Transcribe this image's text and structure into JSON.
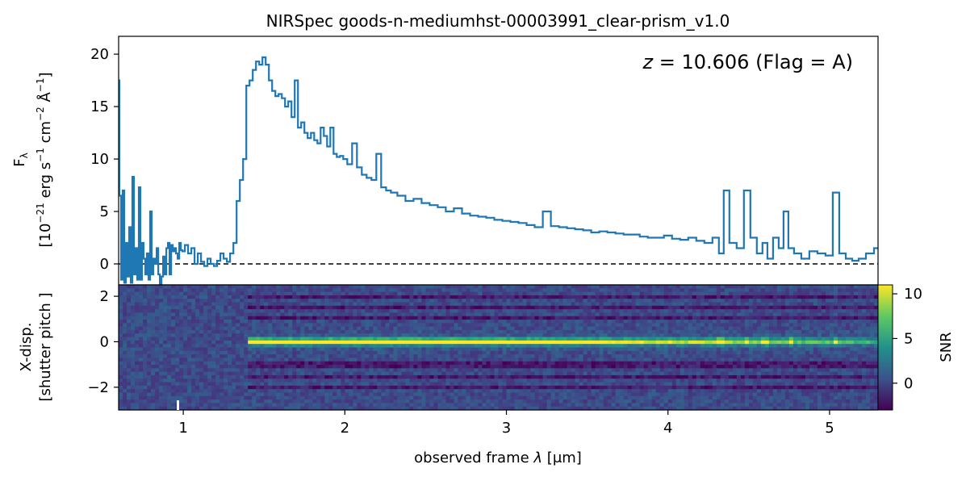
{
  "chart_data": [
    {
      "type": "line",
      "title": "NIRSpec goods-n-mediumhst-00003991_clear-prism_v1.0",
      "annotation": "z = 10.606 (Flag = A)",
      "ylabel": "F_λ [10^-21 erg s^-1 cm^-2 Å^-1]",
      "ylabel_parts": {
        "line1_main": "F",
        "line1_sub": "λ",
        "line2_a": "[10",
        "line2_sup1": "−21",
        "line2_b": " erg s",
        "line2_sup2": "−1",
        "line2_c": " cm",
        "line2_sup3": "−2",
        "line2_d": " Å",
        "line2_sup4": "−1",
        "line2_e": "]"
      },
      "xlim": [
        0.6,
        5.3
      ],
      "ylim": [
        -2,
        21.7
      ],
      "yticks": [
        0,
        5,
        10,
        15,
        20
      ],
      "ytick_labels": [
        "0",
        "5",
        "10",
        "15",
        "20"
      ],
      "line_color": "#1f77b4",
      "reference_line": {
        "y": 0,
        "style": "dashed",
        "color": "#000000"
      },
      "series": [
        {
          "step": "mid",
          "x": [
            0.6,
            0.61,
            0.62,
            0.63,
            0.64,
            0.65,
            0.66,
            0.67,
            0.68,
            0.69,
            0.7,
            0.71,
            0.72,
            0.73,
            0.74,
            0.75,
            0.76,
            0.77,
            0.78,
            0.79,
            0.8,
            0.81,
            0.82,
            0.83,
            0.84,
            0.85,
            0.86,
            0.87,
            0.88,
            0.89,
            0.9,
            0.91,
            0.92,
            0.93,
            0.94,
            0.95,
            0.96,
            0.97,
            0.98,
            0.99,
            1.0,
            1.02,
            1.04,
            1.06,
            1.08,
            1.1,
            1.12,
            1.14,
            1.16,
            1.18,
            1.2,
            1.22,
            1.24,
            1.26,
            1.28,
            1.3,
            1.32,
            1.34,
            1.36,
            1.38,
            1.4,
            1.42,
            1.44,
            1.46,
            1.48,
            1.5,
            1.52,
            1.54,
            1.56,
            1.58,
            1.6,
            1.62,
            1.64,
            1.66,
            1.68,
            1.7,
            1.72,
            1.74,
            1.76,
            1.78,
            1.8,
            1.82,
            1.84,
            1.86,
            1.88,
            1.9,
            1.92,
            1.94,
            1.96,
            1.98,
            2.0,
            2.03,
            2.06,
            2.09,
            2.12,
            2.15,
            2.18,
            2.21,
            2.24,
            2.27,
            2.3,
            2.35,
            2.4,
            2.45,
            2.5,
            2.55,
            2.6,
            2.65,
            2.7,
            2.75,
            2.8,
            2.85,
            2.9,
            2.95,
            3.0,
            3.05,
            3.1,
            3.15,
            3.2,
            3.25,
            3.3,
            3.35,
            3.4,
            3.45,
            3.5,
            3.55,
            3.6,
            3.65,
            3.7,
            3.75,
            3.8,
            3.85,
            3.9,
            3.95,
            4.0,
            4.05,
            4.1,
            4.15,
            4.2,
            4.25,
            4.3,
            4.33,
            4.36,
            4.4,
            4.45,
            4.49,
            4.53,
            4.57,
            4.6,
            4.63,
            4.67,
            4.7,
            4.73,
            4.76,
            4.8,
            4.85,
            4.9,
            4.95,
            5.0,
            5.04,
            5.08,
            5.12,
            5.16,
            5.2,
            5.25,
            5.3
          ],
          "y": [
            17.5,
            6.5,
            -1.5,
            7.0,
            -1.8,
            2.0,
            -1.2,
            3.5,
            -1.8,
            8.3,
            -1.0,
            1.5,
            -1.5,
            7.3,
            -1.5,
            2.0,
            0.5,
            -1.0,
            1.0,
            -1.5,
            5.0,
            -1.0,
            0.5,
            0.0,
            1.5,
            -1.0,
            -2.0,
            -1.2,
            0.7,
            -1.0,
            1.5,
            2.0,
            -1.0,
            1.8,
            1.2,
            1.5,
            1.0,
            0.5,
            2.0,
            1.3,
            1.2,
            1.8,
            1.0,
            1.5,
            0.0,
            1.0,
            0.2,
            -0.2,
            0.5,
            0.0,
            -0.2,
            0.3,
            1.0,
            0.5,
            0.2,
            1.0,
            2.0,
            6.0,
            8.0,
            10.0,
            17.0,
            17.5,
            18.5,
            19.3,
            19.0,
            19.7,
            19.0,
            17.5,
            16.5,
            16.0,
            16.2,
            15.8,
            15.0,
            15.5,
            14.0,
            17.5,
            13.0,
            13.5,
            12.5,
            12.0,
            12.5,
            11.8,
            11.5,
            13.0,
            12.2,
            11.2,
            13.0,
            10.5,
            10.2,
            10.3,
            10.0,
            9.5,
            11.5,
            9.2,
            8.5,
            8.2,
            8.0,
            10.5,
            7.3,
            7.0,
            6.8,
            6.5,
            6.0,
            6.2,
            5.8,
            5.6,
            5.4,
            5.0,
            5.3,
            4.8,
            4.6,
            4.5,
            4.4,
            4.2,
            4.1,
            4.0,
            3.9,
            3.7,
            3.5,
            5.0,
            3.6,
            3.5,
            3.4,
            3.3,
            3.2,
            3.0,
            3.1,
            3.0,
            2.9,
            2.8,
            2.8,
            2.6,
            2.5,
            2.5,
            2.7,
            2.4,
            2.3,
            2.5,
            2.2,
            2.0,
            2.5,
            1.0,
            7.0,
            2.0,
            1.5,
            7.0,
            2.5,
            1.0,
            2.0,
            0.5,
            2.5,
            1.5,
            5.0,
            1.5,
            1.0,
            0.5,
            1.2,
            1.0,
            0.8,
            6.8,
            1.0,
            0.5,
            0.3,
            0.5,
            1.0,
            1.5
          ]
        }
      ]
    },
    {
      "type": "heatmap",
      "ylabel_line1": "X-disp.",
      "ylabel_line2": "[shutter pitch ]",
      "xlabel_prefix": "observed frame ",
      "xlabel_symbol": "λ",
      "xlabel_unit": " [μm]",
      "xlim": [
        0.6,
        5.3
      ],
      "ylim": [
        -3,
        2.5
      ],
      "xticks": [
        1,
        2,
        3,
        4,
        5
      ],
      "xtick_labels": [
        "1",
        "2",
        "3",
        "4",
        "5"
      ],
      "yticks": [
        2,
        0,
        -2
      ],
      "ytick_labels": [
        "2",
        "0",
        "−2"
      ],
      "colormap": "viridis",
      "colorbar": {
        "label": "SNR",
        "range": [
          -3,
          11
        ],
        "ticks": [
          10,
          5,
          0
        ],
        "tick_labels": [
          "10",
          "5",
          "0"
        ]
      },
      "trace": {
        "x_start": 1.4,
        "center_y": 0,
        "peak_snr": 11,
        "line_x": [
          4.33,
          4.49,
          4.6,
          4.76,
          5.04
        ]
      },
      "background_bands_y": [
        2.0,
        1.5,
        1.0,
        -1.0,
        -1.5,
        -2.0
      ]
    }
  ]
}
